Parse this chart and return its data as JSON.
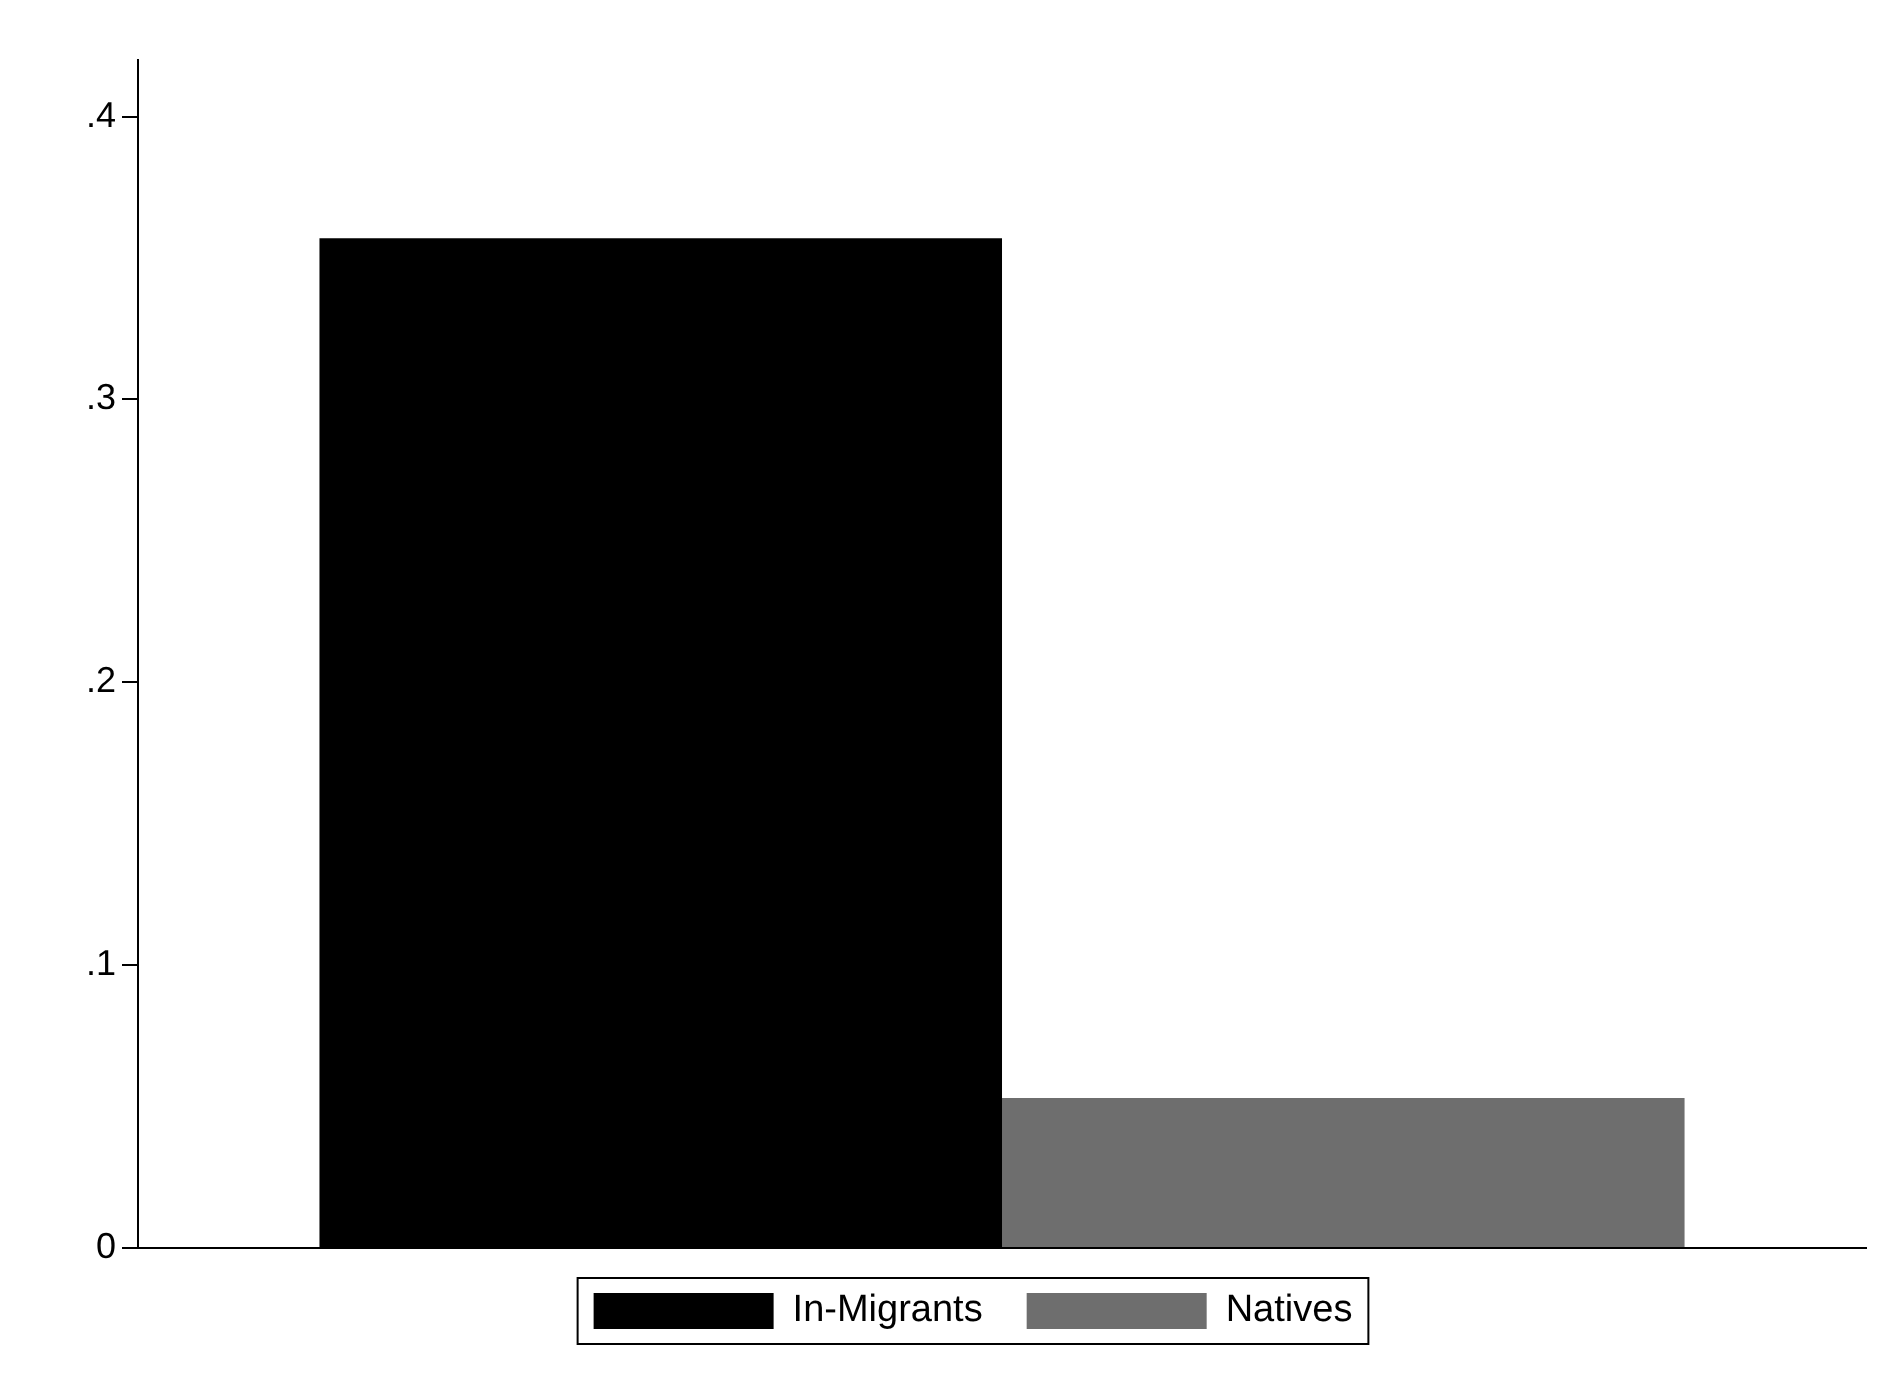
{
  "chart_data": {
    "type": "bar",
    "categories": [
      null
    ],
    "series": [
      {
        "name": "In-Migrants",
        "color": "#000000",
        "values": [
          0.357
        ]
      },
      {
        "name": "Natives",
        "color": "#6e6e6e",
        "values": [
          0.053
        ]
      }
    ],
    "ylim": [
      0,
      0.42
    ],
    "yticks": [
      0,
      {
        "value": 0.1,
        "label": ".1"
      },
      {
        "value": 0.2,
        "label": ".2"
      },
      {
        "value": 0.3,
        "label": ".3"
      },
      {
        "value": 0.4,
        "label": ".4"
      }
    ],
    "grid": false,
    "legend": "bottom"
  }
}
